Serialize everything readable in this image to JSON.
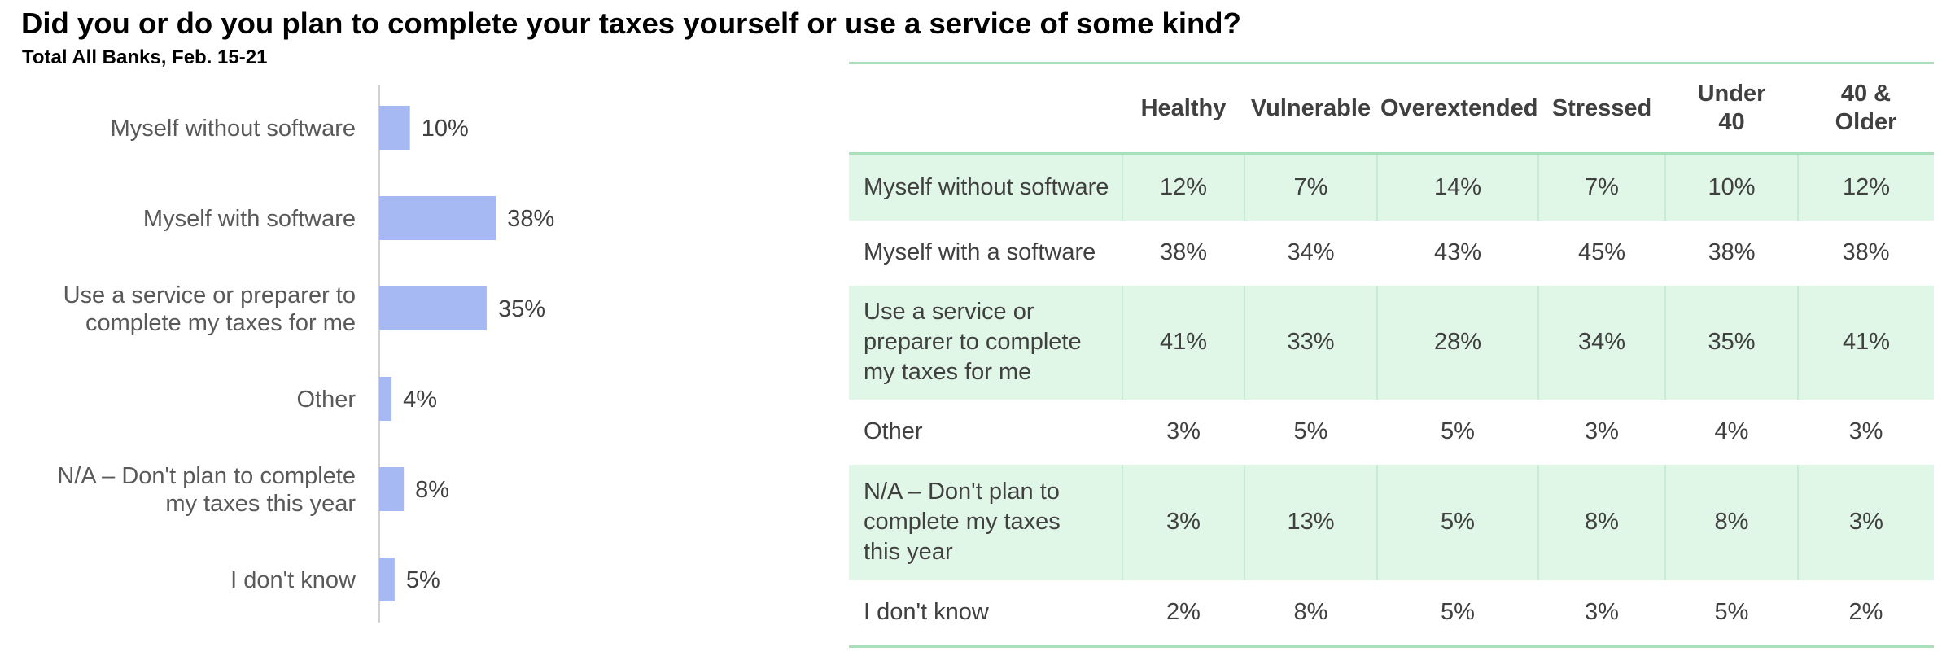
{
  "title": "Did you or do you plan to complete your taxes yourself or use a service of some kind?",
  "subtitle": "Total All Banks, Feb. 15-21",
  "chart_data": {
    "type": "bar",
    "orientation": "horizontal",
    "categories": [
      "Myself without software",
      "Myself with software",
      "Use a service or preparer to complete my taxes for me",
      "Other",
      "N/A – Don't plan to complete my taxes this year",
      "I don't know"
    ],
    "category_lines": [
      [
        "Myself without software"
      ],
      [
        "Myself with software"
      ],
      [
        "Use a service or preparer to",
        "complete my taxes for me"
      ],
      [
        "Other"
      ],
      [
        "N/A – Don't plan to complete",
        "my taxes this year"
      ],
      [
        "I don't know"
      ]
    ],
    "values": [
      10,
      38,
      35,
      4,
      8,
      5
    ],
    "value_labels": [
      "10%",
      "38%",
      "35%",
      "4%",
      "8%",
      "5%"
    ],
    "xlim": [
      0,
      100
    ],
    "bar_color": "#a7b9f3",
    "axis_color": "#d0d0d0",
    "grid": false
  },
  "table": {
    "header_color": "#a9dfb9",
    "shade_color": "#e0f6e6",
    "columns": [
      {
        "lines": [
          "Healthy"
        ]
      },
      {
        "lines": [
          "Vulnerable"
        ]
      },
      {
        "lines": [
          "Overextended"
        ]
      },
      {
        "lines": [
          "Stressed"
        ]
      },
      {
        "lines": [
          "Under",
          "40"
        ]
      },
      {
        "lines": [
          "40 &",
          "Older"
        ]
      }
    ],
    "rows": [
      {
        "label_lines": [
          "Myself without software"
        ],
        "values": [
          "12%",
          "7%",
          "14%",
          "7%",
          "10%",
          "12%"
        ],
        "shaded": true,
        "height": 82
      },
      {
        "label_lines": [
          "Myself with a software"
        ],
        "values": [
          "38%",
          "34%",
          "43%",
          "45%",
          "38%",
          "38%"
        ],
        "shaded": false,
        "height": 80
      },
      {
        "label_lines": [
          "Use a service or",
          "preparer to complete",
          "my taxes for me"
        ],
        "values": [
          "41%",
          "33%",
          "28%",
          "34%",
          "35%",
          "41%"
        ],
        "shaded": true,
        "height": 140
      },
      {
        "label_lines": [
          "Other"
        ],
        "values": [
          "3%",
          "5%",
          "5%",
          "3%",
          "4%",
          "3%"
        ],
        "shaded": false,
        "height": 80
      },
      {
        "label_lines": [
          "N/A – Don't plan to",
          "complete my taxes",
          "this year"
        ],
        "values": [
          "3%",
          "13%",
          "5%",
          "8%",
          "8%",
          "3%"
        ],
        "shaded": true,
        "height": 142
      },
      {
        "label_lines": [
          "I don't know"
        ],
        "values": [
          "2%",
          "8%",
          "5%",
          "3%",
          "5%",
          "2%"
        ],
        "shaded": false,
        "height": 80
      }
    ]
  }
}
